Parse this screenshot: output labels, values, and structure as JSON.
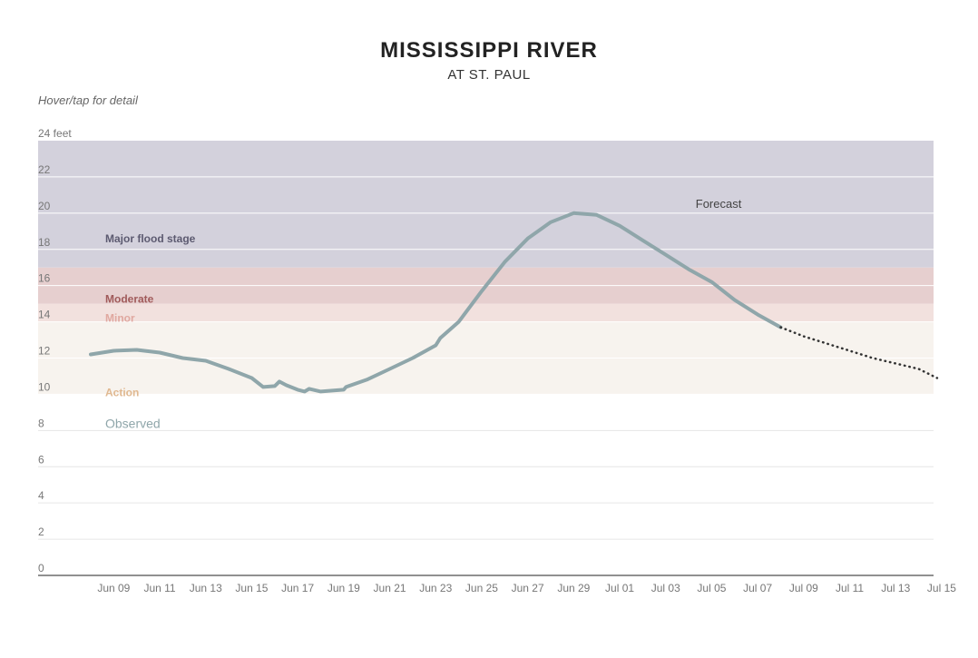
{
  "hint": "Hover/tap for detail",
  "chart_data": {
    "type": "line",
    "title": "MISSISSIPPI RIVER",
    "subtitle": "AT ST. PAUL",
    "ylabel": "feet",
    "ylim": [
      0,
      24
    ],
    "yticks": [
      0,
      2,
      4,
      6,
      8,
      10,
      12,
      14,
      16,
      18,
      20,
      22,
      24
    ],
    "ytick_unit": "feet",
    "xlim": [
      "2023-06-07",
      "2023-07-15"
    ],
    "xticks": [
      "Jun 09",
      "Jun 11",
      "Jun 13",
      "Jun 15",
      "Jun 17",
      "Jun 19",
      "Jun 21",
      "Jun 23",
      "Jun 25",
      "Jun 27",
      "Jun 29",
      "Jul 01",
      "Jul 03",
      "Jul 05",
      "Jul 07",
      "Jul 09",
      "Jul 11",
      "Jul 13",
      "Jul 15"
    ],
    "grid": true,
    "flood_stages": [
      {
        "label": "Action",
        "from": 10,
        "to": 14,
        "color": "#f7f3ee",
        "label_color": "#e0b890"
      },
      {
        "label": "Minor",
        "from": 14,
        "to": 15,
        "color": "#f2e1de",
        "label_color": "#e0a8a0"
      },
      {
        "label": "Moderate",
        "from": 15,
        "to": 17,
        "color": "#e6cfcf",
        "label_color": "#a05a5a"
      },
      {
        "label": "Major flood stage",
        "from": 17,
        "to": 24,
        "color": "#d3d1dc",
        "label_color": "#5c5a70"
      }
    ],
    "series": [
      {
        "name": "Observed",
        "color": "#8fa6aa",
        "points": [
          [
            "Jun 08",
            12.2
          ],
          [
            "Jun 09",
            12.4
          ],
          [
            "Jun 10",
            12.45
          ],
          [
            "Jun 11",
            12.3
          ],
          [
            "Jun 12",
            12.0
          ],
          [
            "Jun 13",
            11.85
          ],
          [
            "Jun 14",
            11.4
          ],
          [
            "Jun 15",
            10.9
          ],
          [
            "Jun 15.5",
            10.4
          ],
          [
            "Jun 16",
            10.45
          ],
          [
            "Jun 16.2",
            10.7
          ],
          [
            "Jun 16.5",
            10.5
          ],
          [
            "Jun 17",
            10.25
          ],
          [
            "Jun 17.3",
            10.15
          ],
          [
            "Jun 17.5",
            10.3
          ],
          [
            "Jun 18",
            10.15
          ],
          [
            "Jun 19",
            10.25
          ],
          [
            "Jun 19.1",
            10.4
          ],
          [
            "Jun 20",
            10.8
          ],
          [
            "Jun 21",
            11.4
          ],
          [
            "Jun 22",
            12.0
          ],
          [
            "Jun 23",
            12.7
          ],
          [
            "Jun 23.2",
            13.1
          ],
          [
            "Jun 24",
            14.0
          ],
          [
            "Jun 25",
            15.7
          ],
          [
            "Jun 26",
            17.3
          ],
          [
            "Jun 27",
            18.6
          ],
          [
            "Jun 28",
            19.5
          ],
          [
            "Jun 29",
            20.0
          ],
          [
            "Jun 30",
            19.9
          ],
          [
            "Jul 01",
            19.3
          ],
          [
            "Jul 02",
            18.5
          ],
          [
            "Jul 03",
            17.7
          ],
          [
            "Jul 04",
            16.9
          ],
          [
            "Jul 05",
            16.2
          ],
          [
            "Jul 06",
            15.2
          ],
          [
            "Jul 07",
            14.4
          ],
          [
            "Jul 08",
            13.7
          ]
        ]
      },
      {
        "name": "Forecast",
        "color": "#333333",
        "points": [
          [
            "Jul 08",
            13.7
          ],
          [
            "Jul 09",
            13.2
          ],
          [
            "Jul 10",
            12.8
          ],
          [
            "Jul 11",
            12.4
          ],
          [
            "Jul 12",
            12.0
          ],
          [
            "Jul 13",
            11.7
          ],
          [
            "Jul 14",
            11.4
          ],
          [
            "Jul 14.8",
            10.9
          ]
        ]
      }
    ]
  }
}
